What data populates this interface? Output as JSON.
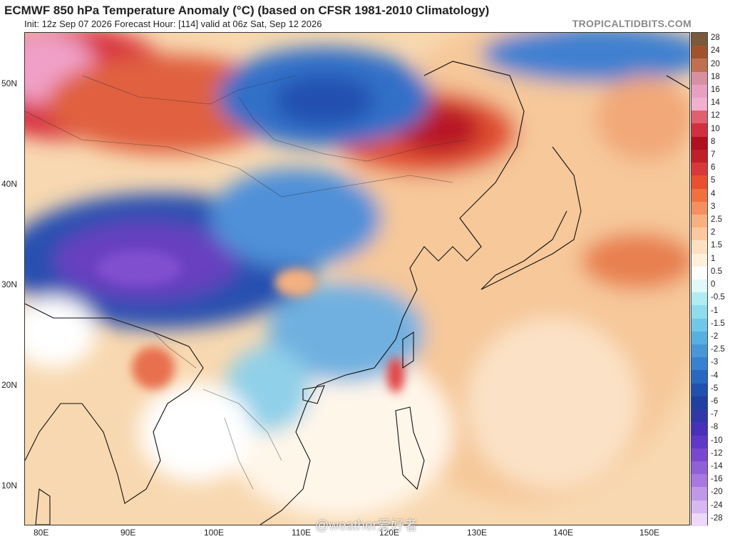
{
  "header": {
    "title": "ECMWF 850 hPa Temperature Anomaly (°C) (based on CFSR 1981-2010 Climatology)",
    "subtitle": "Init: 12z Sep 07 2026   Forecast Hour: [114]   valid at 06z Sat, Sep 12 2026",
    "brand": "TROPICALTIDBITS.COM"
  },
  "axes": {
    "lat_labels": [
      "50N",
      "40N",
      "30N",
      "20N",
      "10N"
    ],
    "lon_labels": [
      "80E",
      "90E",
      "100E",
      "110E",
      "120E",
      "130E",
      "140E",
      "150E"
    ]
  },
  "colorbar": {
    "labels": [
      "28",
      "24",
      "20",
      "18",
      "16",
      "14",
      "12",
      "10",
      "8",
      "7",
      "6",
      "5",
      "4",
      "3",
      "2.5",
      "2",
      "1.5",
      "1",
      "0.5",
      "0",
      "-0.5",
      "-1",
      "-1.5",
      "-2",
      "-2.5",
      "-3",
      "-4",
      "-5",
      "-6",
      "-7",
      "-8",
      "-10",
      "-12",
      "-14",
      "-16",
      "-20",
      "-24",
      "-28"
    ],
    "colors": [
      "#7a5a3a",
      "#a0522d",
      "#c07050",
      "#d890a0",
      "#e8a0c0",
      "#f0b0d0",
      "#e06070",
      "#d03040",
      "#b01020",
      "#c02028",
      "#d83838",
      "#e85030",
      "#f07040",
      "#f49060",
      "#f8b080",
      "#fcc8a0",
      "#fde0c0",
      "#fff0dc",
      "#ffffff",
      "#e0f8f8",
      "#b0ecf0",
      "#90dcec",
      "#70c8e8",
      "#58b0e0",
      "#4898d8",
      "#3880d0",
      "#2868c0",
      "#2050b0",
      "#2040a0",
      "#3038a8",
      "#4830b8",
      "#6038c8",
      "#7848d0",
      "#9060d8",
      "#a878e0",
      "#c098e8",
      "#d8b8f0",
      "#eed8f8"
    ]
  },
  "watermark": "@weather爱好者",
  "colors": {
    "ocean_base": "#f8dcb8",
    "cold_core": "#7040c8",
    "warm_core": "#c02020"
  }
}
